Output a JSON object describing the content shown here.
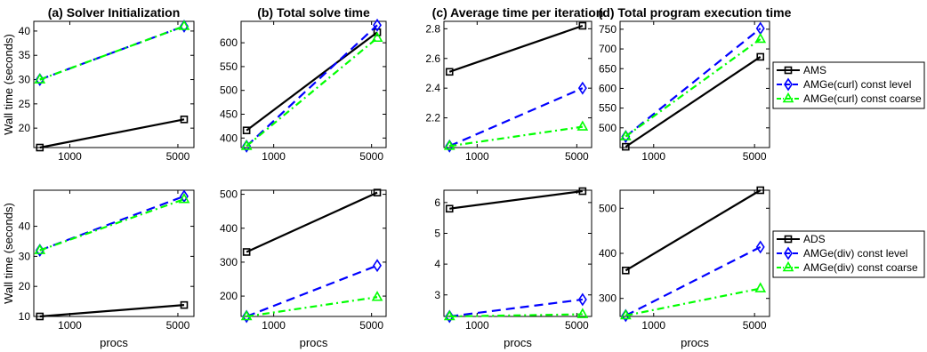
{
  "chart_data": [
    {
      "type": "line",
      "title": "(a) Solver Initialization",
      "xlabel": "",
      "ylabel": "Wall time (seconds)",
      "x": [
        640,
        5488
      ],
      "ylim": [
        16,
        42
      ],
      "xticks": [
        {
          "value": 1000,
          "label": "1000"
        },
        {
          "value": 5000,
          "label": "5000"
        }
      ],
      "yticks": [
        {
          "value": 20,
          "label": "20"
        },
        {
          "value": 25,
          "label": "25"
        },
        {
          "value": 30,
          "label": "30"
        },
        {
          "value": 35,
          "label": "35"
        },
        {
          "value": 40,
          "label": "40"
        }
      ],
      "series": [
        {
          "name": "AMS",
          "values": [
            16.0,
            21.8
          ]
        },
        {
          "name": "AMGe(curl) const level",
          "values": [
            30.0,
            41.0
          ]
        },
        {
          "name": "AMGe(curl) const coarse",
          "values": [
            30.0,
            41.0
          ]
        }
      ]
    },
    {
      "type": "line",
      "title": "(b) Total solve time",
      "xlabel": "",
      "ylabel": "",
      "x": [
        640,
        5488
      ],
      "ylim": [
        380,
        645
      ],
      "xticks": [
        {
          "value": 1000,
          "label": "1000"
        },
        {
          "value": 5000,
          "label": "5000"
        }
      ],
      "yticks": [
        {
          "value": 400,
          "label": "400"
        },
        {
          "value": 450,
          "label": "450"
        },
        {
          "value": 500,
          "label": "500"
        },
        {
          "value": 550,
          "label": "550"
        },
        {
          "value": 600,
          "label": "600"
        }
      ],
      "series": [
        {
          "name": "AMS",
          "values": [
            416,
            622
          ]
        },
        {
          "name": "AMGe(curl) const level",
          "values": [
            383,
            637
          ]
        },
        {
          "name": "AMGe(curl) const coarse",
          "values": [
            383,
            610
          ]
        }
      ]
    },
    {
      "type": "line",
      "title": "(c) Average time per iteration",
      "xlabel": "",
      "ylabel": "",
      "x": [
        640,
        5488
      ],
      "ylim": [
        2.0,
        2.85
      ],
      "xticks": [
        {
          "value": 1000,
          "label": "1000"
        },
        {
          "value": 5000,
          "label": "5000"
        }
      ],
      "yticks": [
        {
          "value": 2.2,
          "label": "2.2"
        },
        {
          "value": 2.4,
          "label": "2.4"
        },
        {
          "value": 2.6,
          "label": "2.6"
        },
        {
          "value": 2.8,
          "label": "2.8"
        }
      ],
      "series": [
        {
          "name": "AMS",
          "values": [
            2.51,
            2.82
          ]
        },
        {
          "name": "AMGe(curl) const level",
          "values": [
            2.01,
            2.4
          ]
        },
        {
          "name": "AMGe(curl) const coarse",
          "values": [
            2.01,
            2.14
          ]
        }
      ]
    },
    {
      "type": "line",
      "title": "(d) Total program execution time",
      "xlabel": "",
      "ylabel": "",
      "x": [
        640,
        5488
      ],
      "ylim": [
        450,
        770
      ],
      "xticks": [
        {
          "value": 1000,
          "label": "1000"
        },
        {
          "value": 5000,
          "label": "5000"
        }
      ],
      "yticks": [
        {
          "value": 500,
          "label": "500"
        },
        {
          "value": 550,
          "label": "550"
        },
        {
          "value": 600,
          "label": "600"
        },
        {
          "value": 650,
          "label": "650"
        },
        {
          "value": 700,
          "label": "700"
        },
        {
          "value": 750,
          "label": "750"
        }
      ],
      "series": [
        {
          "name": "AMS",
          "values": [
            452,
            680
          ]
        },
        {
          "name": "AMGe(curl) const level",
          "values": [
            478,
            752
          ]
        },
        {
          "name": "AMGe(curl) const coarse",
          "values": [
            478,
            725
          ]
        }
      ]
    },
    {
      "type": "line",
      "title": "",
      "xlabel": "procs",
      "ylabel": "Wall time (seconds)",
      "x": [
        640,
        5488
      ],
      "ylim": [
        10,
        52
      ],
      "xticks": [
        {
          "value": 1000,
          "label": "1000"
        },
        {
          "value": 5000,
          "label": "5000"
        }
      ],
      "yticks": [
        {
          "value": 10,
          "label": "10"
        },
        {
          "value": 20,
          "label": "20"
        },
        {
          "value": 30,
          "label": "30"
        },
        {
          "value": 40,
          "label": "40"
        }
      ],
      "series": [
        {
          "name": "ADS",
          "values": [
            10.0,
            13.8
          ]
        },
        {
          "name": "AMGe(div) const level",
          "values": [
            32.0,
            50.0
          ]
        },
        {
          "name": "AMGe(div) const coarse",
          "values": [
            32.0,
            49.0
          ]
        }
      ]
    },
    {
      "type": "line",
      "title": "",
      "xlabel": "procs",
      "ylabel": "",
      "x": [
        640,
        5488
      ],
      "ylim": [
        140,
        512
      ],
      "xticks": [
        {
          "value": 1000,
          "label": "1000"
        },
        {
          "value": 5000,
          "label": "5000"
        }
      ],
      "yticks": [
        {
          "value": 200,
          "label": "200"
        },
        {
          "value": 300,
          "label": "300"
        },
        {
          "value": 400,
          "label": "400"
        },
        {
          "value": 500,
          "label": "500"
        }
      ],
      "series": [
        {
          "name": "ADS",
          "values": [
            330,
            505
          ]
        },
        {
          "name": "AMGe(div) const level",
          "values": [
            140,
            290
          ]
        },
        {
          "name": "AMGe(div) const coarse",
          "values": [
            140,
            197
          ]
        }
      ]
    },
    {
      "type": "line",
      "title": "",
      "xlabel": "procs",
      "ylabel": "",
      "x": [
        640,
        5488
      ],
      "ylim": [
        2.3,
        6.4
      ],
      "xticks": [
        {
          "value": 1000,
          "label": "1000"
        },
        {
          "value": 5000,
          "label": "5000"
        }
      ],
      "yticks": [
        {
          "value": 3,
          "label": "3"
        },
        {
          "value": 4,
          "label": "4"
        },
        {
          "value": 5,
          "label": "5"
        },
        {
          "value": 6,
          "label": "6"
        }
      ],
      "series": [
        {
          "name": "ADS",
          "values": [
            5.8,
            6.37
          ]
        },
        {
          "name": "AMGe(div) const level",
          "values": [
            2.3,
            2.85
          ]
        },
        {
          "name": "AMGe(div) const coarse",
          "values": [
            2.3,
            2.37
          ]
        }
      ]
    },
    {
      "type": "line",
      "title": "",
      "xlabel": "procs",
      "ylabel": "",
      "x": [
        640,
        5488
      ],
      "ylim": [
        260,
        540
      ],
      "xticks": [
        {
          "value": 1000,
          "label": "1000"
        },
        {
          "value": 5000,
          "label": "5000"
        }
      ],
      "yticks": [
        {
          "value": 300,
          "label": "300"
        },
        {
          "value": 400,
          "label": "400"
        },
        {
          "value": 500,
          "label": "500"
        }
      ],
      "series": [
        {
          "name": "ADS",
          "values": [
            362,
            540
          ]
        },
        {
          "name": "AMGe(div) const level",
          "values": [
            262,
            414
          ]
        },
        {
          "name": "AMGe(div) const coarse",
          "values": [
            262,
            322
          ]
        }
      ]
    }
  ],
  "legends": [
    {
      "entries": [
        "AMS",
        "AMGe(curl) const level",
        "AMGe(curl) const coarse"
      ]
    },
    {
      "entries": [
        "ADS",
        "AMGe(div) const level",
        "AMGe(div) const coarse"
      ]
    }
  ],
  "style": {
    "colors": [
      "#000000",
      "#0000ff",
      "#00ff00"
    ],
    "dashes": [
      "none",
      "10,6",
      "8,4,2,4"
    ],
    "markers": [
      "square",
      "diamond",
      "triangle"
    ],
    "xscale": "log",
    "grid": false,
    "legend_placement": "right of rightmost panel in each row"
  }
}
